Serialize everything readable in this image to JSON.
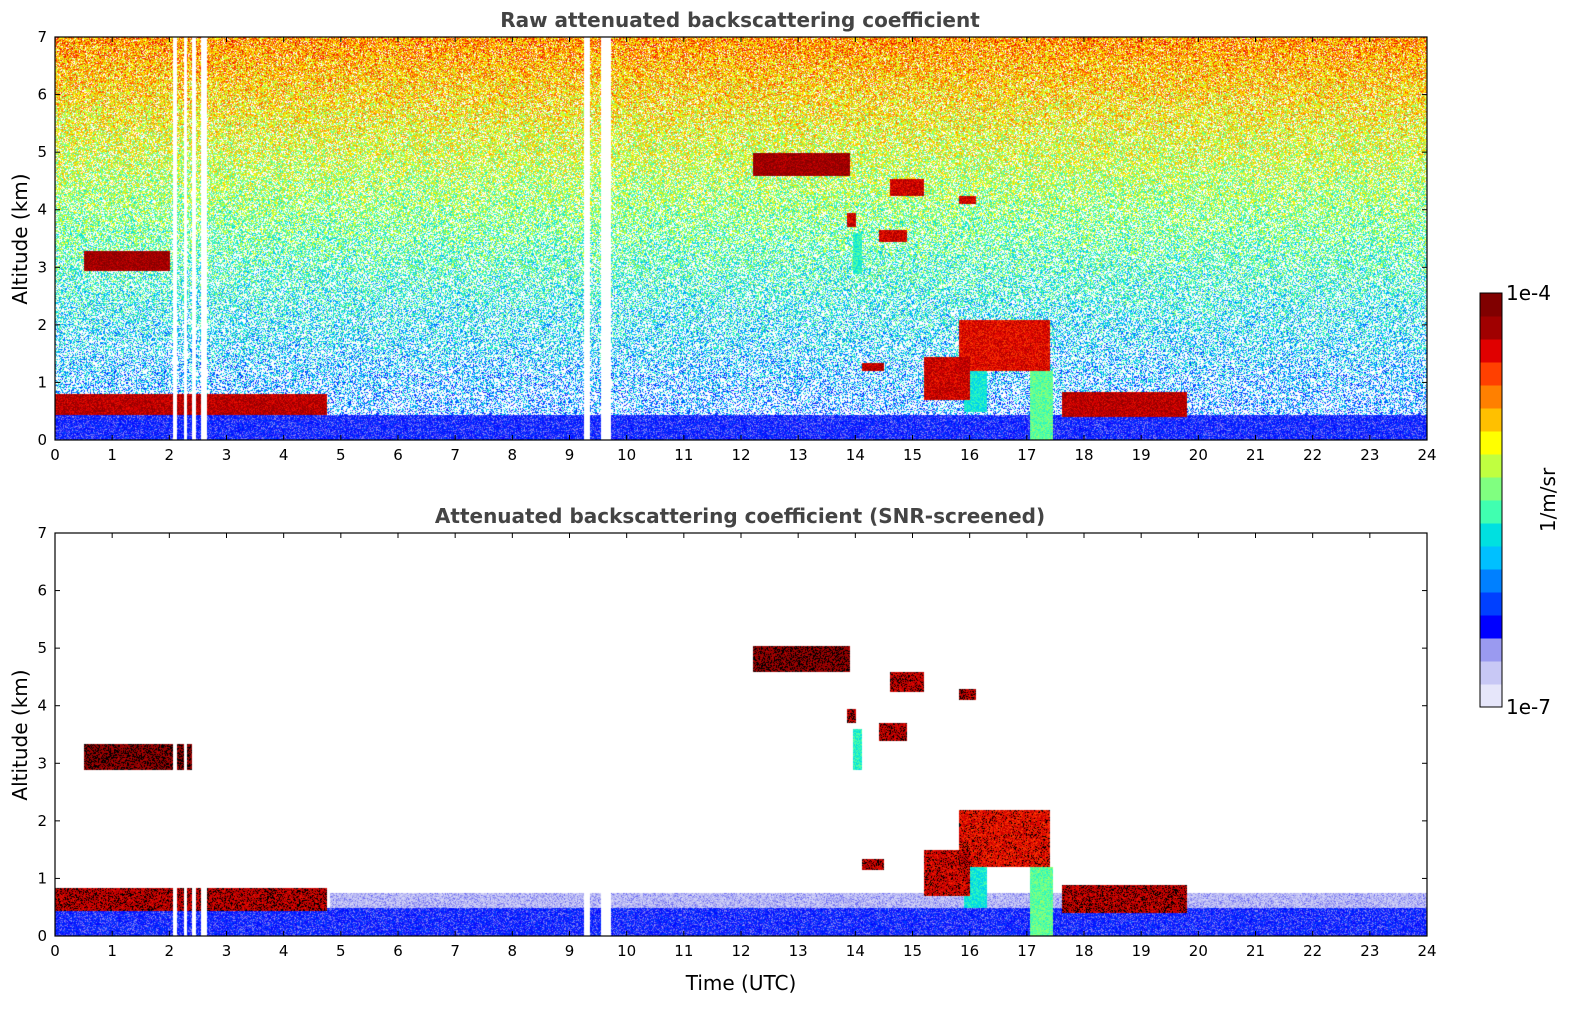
{
  "chart_data": [
    {
      "type": "heatmap",
      "title": "Raw attenuated backscattering coefficient",
      "xlabel": "",
      "ylabel": "Altitude (km)",
      "xlim": [
        0,
        24
      ],
      "ylim": [
        0,
        7
      ],
      "xticks": [
        "0",
        "1",
        "2",
        "3",
        "4",
        "5",
        "6",
        "7",
        "8",
        "9",
        "10",
        "11",
        "12",
        "13",
        "14",
        "15",
        "16",
        "17",
        "18",
        "19",
        "20",
        "21",
        "22",
        "23",
        "24"
      ],
      "yticks": [
        "0",
        "1",
        "2",
        "3",
        "4",
        "5",
        "6",
        "7"
      ],
      "background_noise": true,
      "data_gaps_utc": [
        [
          2.05,
          2.12
        ],
        [
          2.25,
          2.3
        ],
        [
          2.38,
          2.45
        ],
        [
          2.55,
          2.65
        ],
        [
          9.25,
          9.35
        ],
        [
          9.55,
          9.72
        ]
      ],
      "features": [
        {
          "name": "boundary layer",
          "t0": 0.0,
          "t1": 24.0,
          "h0": 0.0,
          "h1": 0.45,
          "intensity": 0.18
        },
        {
          "name": "residual layer tops",
          "t0": 0.0,
          "t1": 4.75,
          "h0": 0.45,
          "h1": 0.8,
          "intensity": 0.92
        },
        {
          "name": "mid-level cloud A",
          "t0": 0.5,
          "t1": 2.0,
          "h0": 2.95,
          "h1": 3.3,
          "intensity": 0.95
        },
        {
          "name": "high cloud B",
          "t0": 12.2,
          "t1": 13.9,
          "h0": 4.6,
          "h1": 5.0,
          "intensity": 0.95
        },
        {
          "name": "cloud C",
          "t0": 14.6,
          "t1": 15.2,
          "h0": 4.25,
          "h1": 4.55,
          "intensity": 0.9
        },
        {
          "name": "cloud D",
          "t0": 15.8,
          "t1": 16.1,
          "h0": 4.1,
          "h1": 4.25,
          "intensity": 0.9
        },
        {
          "name": "cloud E",
          "t0": 14.4,
          "t1": 14.9,
          "h0": 3.45,
          "h1": 3.65,
          "intensity": 0.9
        },
        {
          "name": "cloud F",
          "t0": 13.85,
          "t1": 14.0,
          "h0": 3.7,
          "h1": 3.95,
          "intensity": 0.9
        },
        {
          "name": "virga G",
          "t0": 13.95,
          "t1": 14.1,
          "h0": 2.9,
          "h1": 3.6,
          "intensity": 0.45
        },
        {
          "name": "low cloud H",
          "t0": 14.1,
          "t1": 14.5,
          "h0": 1.2,
          "h1": 1.35,
          "intensity": 0.92
        },
        {
          "name": "convective cloud I",
          "t0": 15.2,
          "t1": 16.0,
          "h0": 0.7,
          "h1": 1.45,
          "intensity": 0.9
        },
        {
          "name": "convective cloud J",
          "t0": 15.8,
          "t1": 17.4,
          "h0": 1.2,
          "h1": 2.1,
          "intensity": 0.88
        },
        {
          "name": "precipitation shaft",
          "t0": 15.9,
          "t1": 16.3,
          "h0": 0.5,
          "h1": 1.9,
          "intensity": 0.42
        },
        {
          "name": "precipitation shaft 2",
          "t0": 17.05,
          "t1": 17.45,
          "h0": 0.0,
          "h1": 1.2,
          "intensity": 0.5
        },
        {
          "name": "low cloud K",
          "t0": 17.6,
          "t1": 19.8,
          "h0": 0.4,
          "h1": 0.85,
          "intensity": 0.92
        }
      ]
    },
    {
      "type": "heatmap",
      "title": "Attenuated backscattering coefficient (SNR-screened)",
      "xlabel": "Time (UTC)",
      "ylabel": "Altitude (km)",
      "xlim": [
        0,
        24
      ],
      "ylim": [
        0,
        7
      ],
      "xticks": [
        "0",
        "1",
        "2",
        "3",
        "4",
        "5",
        "6",
        "7",
        "8",
        "9",
        "10",
        "11",
        "12",
        "13",
        "14",
        "15",
        "16",
        "17",
        "18",
        "19",
        "20",
        "21",
        "22",
        "23",
        "24"
      ],
      "yticks": [
        "0",
        "1",
        "2",
        "3",
        "4",
        "5",
        "6",
        "7"
      ],
      "background_noise": false,
      "data_gaps_utc": [
        [
          2.05,
          2.12
        ],
        [
          2.25,
          2.3
        ],
        [
          2.38,
          2.45
        ],
        [
          2.55,
          2.65
        ],
        [
          9.25,
          9.35
        ],
        [
          9.55,
          9.72
        ]
      ],
      "features": [
        {
          "name": "boundary layer",
          "t0": 0.0,
          "t1": 24.0,
          "h0": 0.0,
          "h1": 0.5,
          "intensity": 0.18
        },
        {
          "name": "aerosol haze",
          "t0": 4.8,
          "t1": 24.0,
          "h0": 0.5,
          "h1": 0.75,
          "intensity": 0.08
        },
        {
          "name": "residual layer tops",
          "t0": 0.0,
          "t1": 4.75,
          "h0": 0.45,
          "h1": 0.85,
          "intensity": 0.92
        },
        {
          "name": "mid-level cloud A",
          "t0": 0.5,
          "t1": 2.4,
          "h0": 2.9,
          "h1": 3.35,
          "intensity": 0.97
        },
        {
          "name": "high cloud B",
          "t0": 12.2,
          "t1": 13.9,
          "h0": 4.6,
          "h1": 5.05,
          "intensity": 0.97
        },
        {
          "name": "cloud C",
          "t0": 14.6,
          "t1": 15.2,
          "h0": 4.25,
          "h1": 4.6,
          "intensity": 0.92
        },
        {
          "name": "cloud D",
          "t0": 15.8,
          "t1": 16.1,
          "h0": 4.1,
          "h1": 4.3,
          "intensity": 0.92
        },
        {
          "name": "cloud E",
          "t0": 14.4,
          "t1": 14.9,
          "h0": 3.4,
          "h1": 3.7,
          "intensity": 0.92
        },
        {
          "name": "cloud F",
          "t0": 13.85,
          "t1": 14.0,
          "h0": 3.7,
          "h1": 3.95,
          "intensity": 0.92
        },
        {
          "name": "virga G",
          "t0": 13.95,
          "t1": 14.1,
          "h0": 2.9,
          "h1": 3.6,
          "intensity": 0.45
        },
        {
          "name": "low cloud H",
          "t0": 14.1,
          "t1": 14.5,
          "h0": 1.15,
          "h1": 1.35,
          "intensity": 0.92
        },
        {
          "name": "convective cloud I",
          "t0": 15.2,
          "t1": 16.0,
          "h0": 0.7,
          "h1": 1.5,
          "intensity": 0.9
        },
        {
          "name": "convective cloud J",
          "t0": 15.8,
          "t1": 17.4,
          "h0": 1.2,
          "h1": 2.2,
          "intensity": 0.88
        },
        {
          "name": "precipitation shaft",
          "t0": 15.9,
          "t1": 16.3,
          "h0": 0.5,
          "h1": 1.9,
          "intensity": 0.42
        },
        {
          "name": "precipitation shaft 2",
          "t0": 17.05,
          "t1": 17.45,
          "h0": 0.0,
          "h1": 1.2,
          "intensity": 0.5
        },
        {
          "name": "low cloud K",
          "t0": 17.6,
          "t1": 19.8,
          "h0": 0.4,
          "h1": 0.9,
          "intensity": 0.92
        }
      ]
    }
  ],
  "colorbar": {
    "label": "1/m/sr",
    "max_label": "1e-4",
    "min_label": "1e-7",
    "colors": [
      "#e6e6fa",
      "#c8c8f5",
      "#9a9af0",
      "#0000ff",
      "#0040ff",
      "#0080ff",
      "#00c0ff",
      "#00e0e0",
      "#40ffb0",
      "#80ff80",
      "#c0ff40",
      "#ffff00",
      "#ffc000",
      "#ff8000",
      "#ff4000",
      "#e00000",
      "#a00000",
      "#800000"
    ]
  }
}
